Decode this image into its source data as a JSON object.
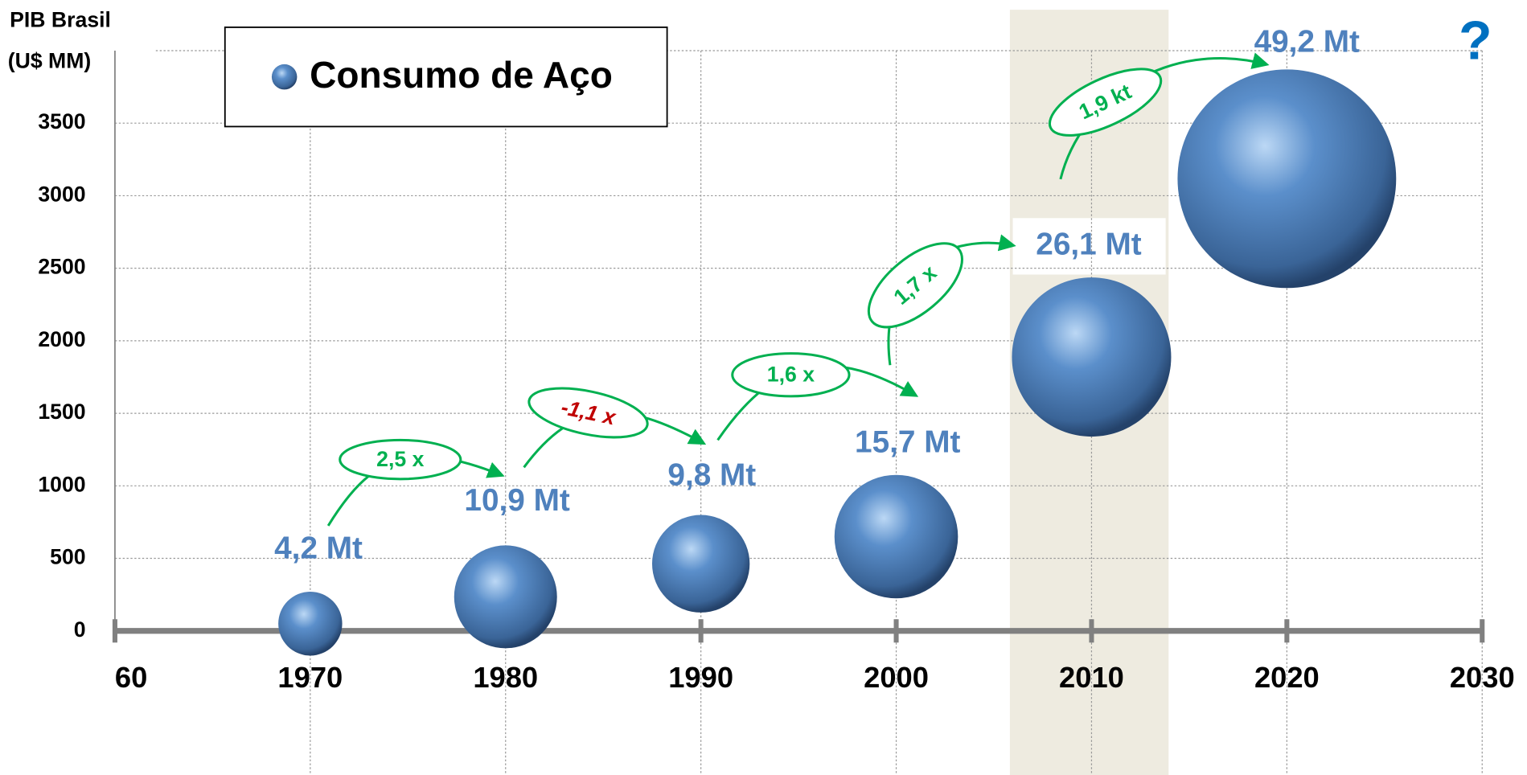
{
  "chart_data": {
    "type": "bubble",
    "y_axis_title": [
      "PIB Brasil",
      "(U$ MM)"
    ],
    "xlim": [
      1960,
      2030
    ],
    "xticks": [
      1960,
      1970,
      1980,
      1990,
      2000,
      2010,
      2020,
      2030
    ],
    "ylim": [
      0,
      4000
    ],
    "yticks": [
      0,
      500,
      1000,
      1500,
      2000,
      2500,
      3000,
      3500
    ],
    "grid": true,
    "legend": "top-left",
    "series": [
      {
        "name": "Consumo de Aço",
        "color": "#4f81bd",
        "x": [
          1970,
          1980,
          1990,
          2000,
          2010,
          2020
        ],
        "values": [
          50,
          235,
          463,
          650,
          1888,
          3117
        ],
        "sizes": [
          4.2,
          10.9,
          9.8,
          15.7,
          26.1,
          49.2
        ],
        "size_labels": [
          "4,2 Mt",
          "10,9 Mt",
          "9,8 Mt",
          "15,7 Mt",
          "26,1 Mt",
          "49,2 Mt"
        ]
      }
    ],
    "annotations": [
      {
        "text": "2,5 x",
        "color": "#00b050"
      },
      {
        "text": "-1,1 x",
        "color": "#c00000"
      },
      {
        "text": "1,6 x",
        "color": "#00b050"
      },
      {
        "text": "1,7 x",
        "color": "#00b050"
      },
      {
        "text": "1,9 kt",
        "color": "#00b050"
      },
      {
        "text": "?",
        "color": "#0070c0"
      }
    ]
  }
}
